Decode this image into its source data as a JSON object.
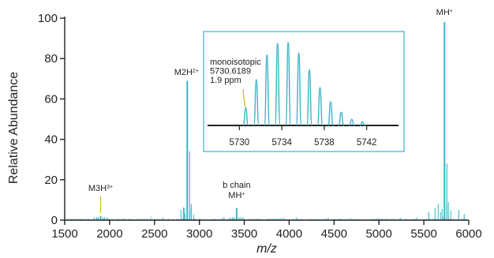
{
  "chart_data": {
    "type": "line",
    "title": "",
    "xlabel": "m/z",
    "ylabel": "Relative Abundance",
    "xlim": [
      1500,
      6000
    ],
    "ylim": [
      0,
      100
    ],
    "x_ticks": [
      1500,
      2000,
      2500,
      3000,
      3500,
      4000,
      4500,
      5000,
      5500,
      6000
    ],
    "y_ticks": [
      0,
      20,
      40,
      60,
      80,
      100
    ],
    "grid": false,
    "legend": "none",
    "colors": {
      "trace": "#3bb3c9",
      "callout": "#c9c21a",
      "axis": "#222222"
    },
    "peaks": [
      {
        "mz": 1900,
        "abundance": 2,
        "label": "M3H",
        "label_sup": "3+"
      },
      {
        "mz": 2865,
        "abundance": 69,
        "label": "M2H",
        "label_sup": "2+"
      },
      {
        "mz": 3415,
        "abundance": 6,
        "label_line1": "b chain",
        "label": "MH",
        "label_sup": "+"
      },
      {
        "mz": 5730,
        "abundance": 98,
        "label": "MH",
        "label_sup": "+"
      }
    ],
    "inset": {
      "xlim": [
        5727,
        5745
      ],
      "x_ticks": [
        5730,
        5734,
        5738,
        5742
      ],
      "isotopes": [
        {
          "mz": 5730.6,
          "abundance": 20
        },
        {
          "mz": 5731.6,
          "abundance": 52
        },
        {
          "mz": 5732.6,
          "abundance": 80
        },
        {
          "mz": 5733.6,
          "abundance": 93
        },
        {
          "mz": 5734.6,
          "abundance": 94
        },
        {
          "mz": 5735.6,
          "abundance": 82
        },
        {
          "mz": 5736.6,
          "abundance": 63
        },
        {
          "mz": 5737.6,
          "abundance": 43
        },
        {
          "mz": 5738.6,
          "abundance": 27
        },
        {
          "mz": 5739.6,
          "abundance": 15
        },
        {
          "mz": 5740.6,
          "abundance": 7
        },
        {
          "mz": 5741.6,
          "abundance": 4
        }
      ],
      "annotation": [
        "monoisotopic",
        "5730.6189",
        "1.9 ppm"
      ]
    }
  }
}
